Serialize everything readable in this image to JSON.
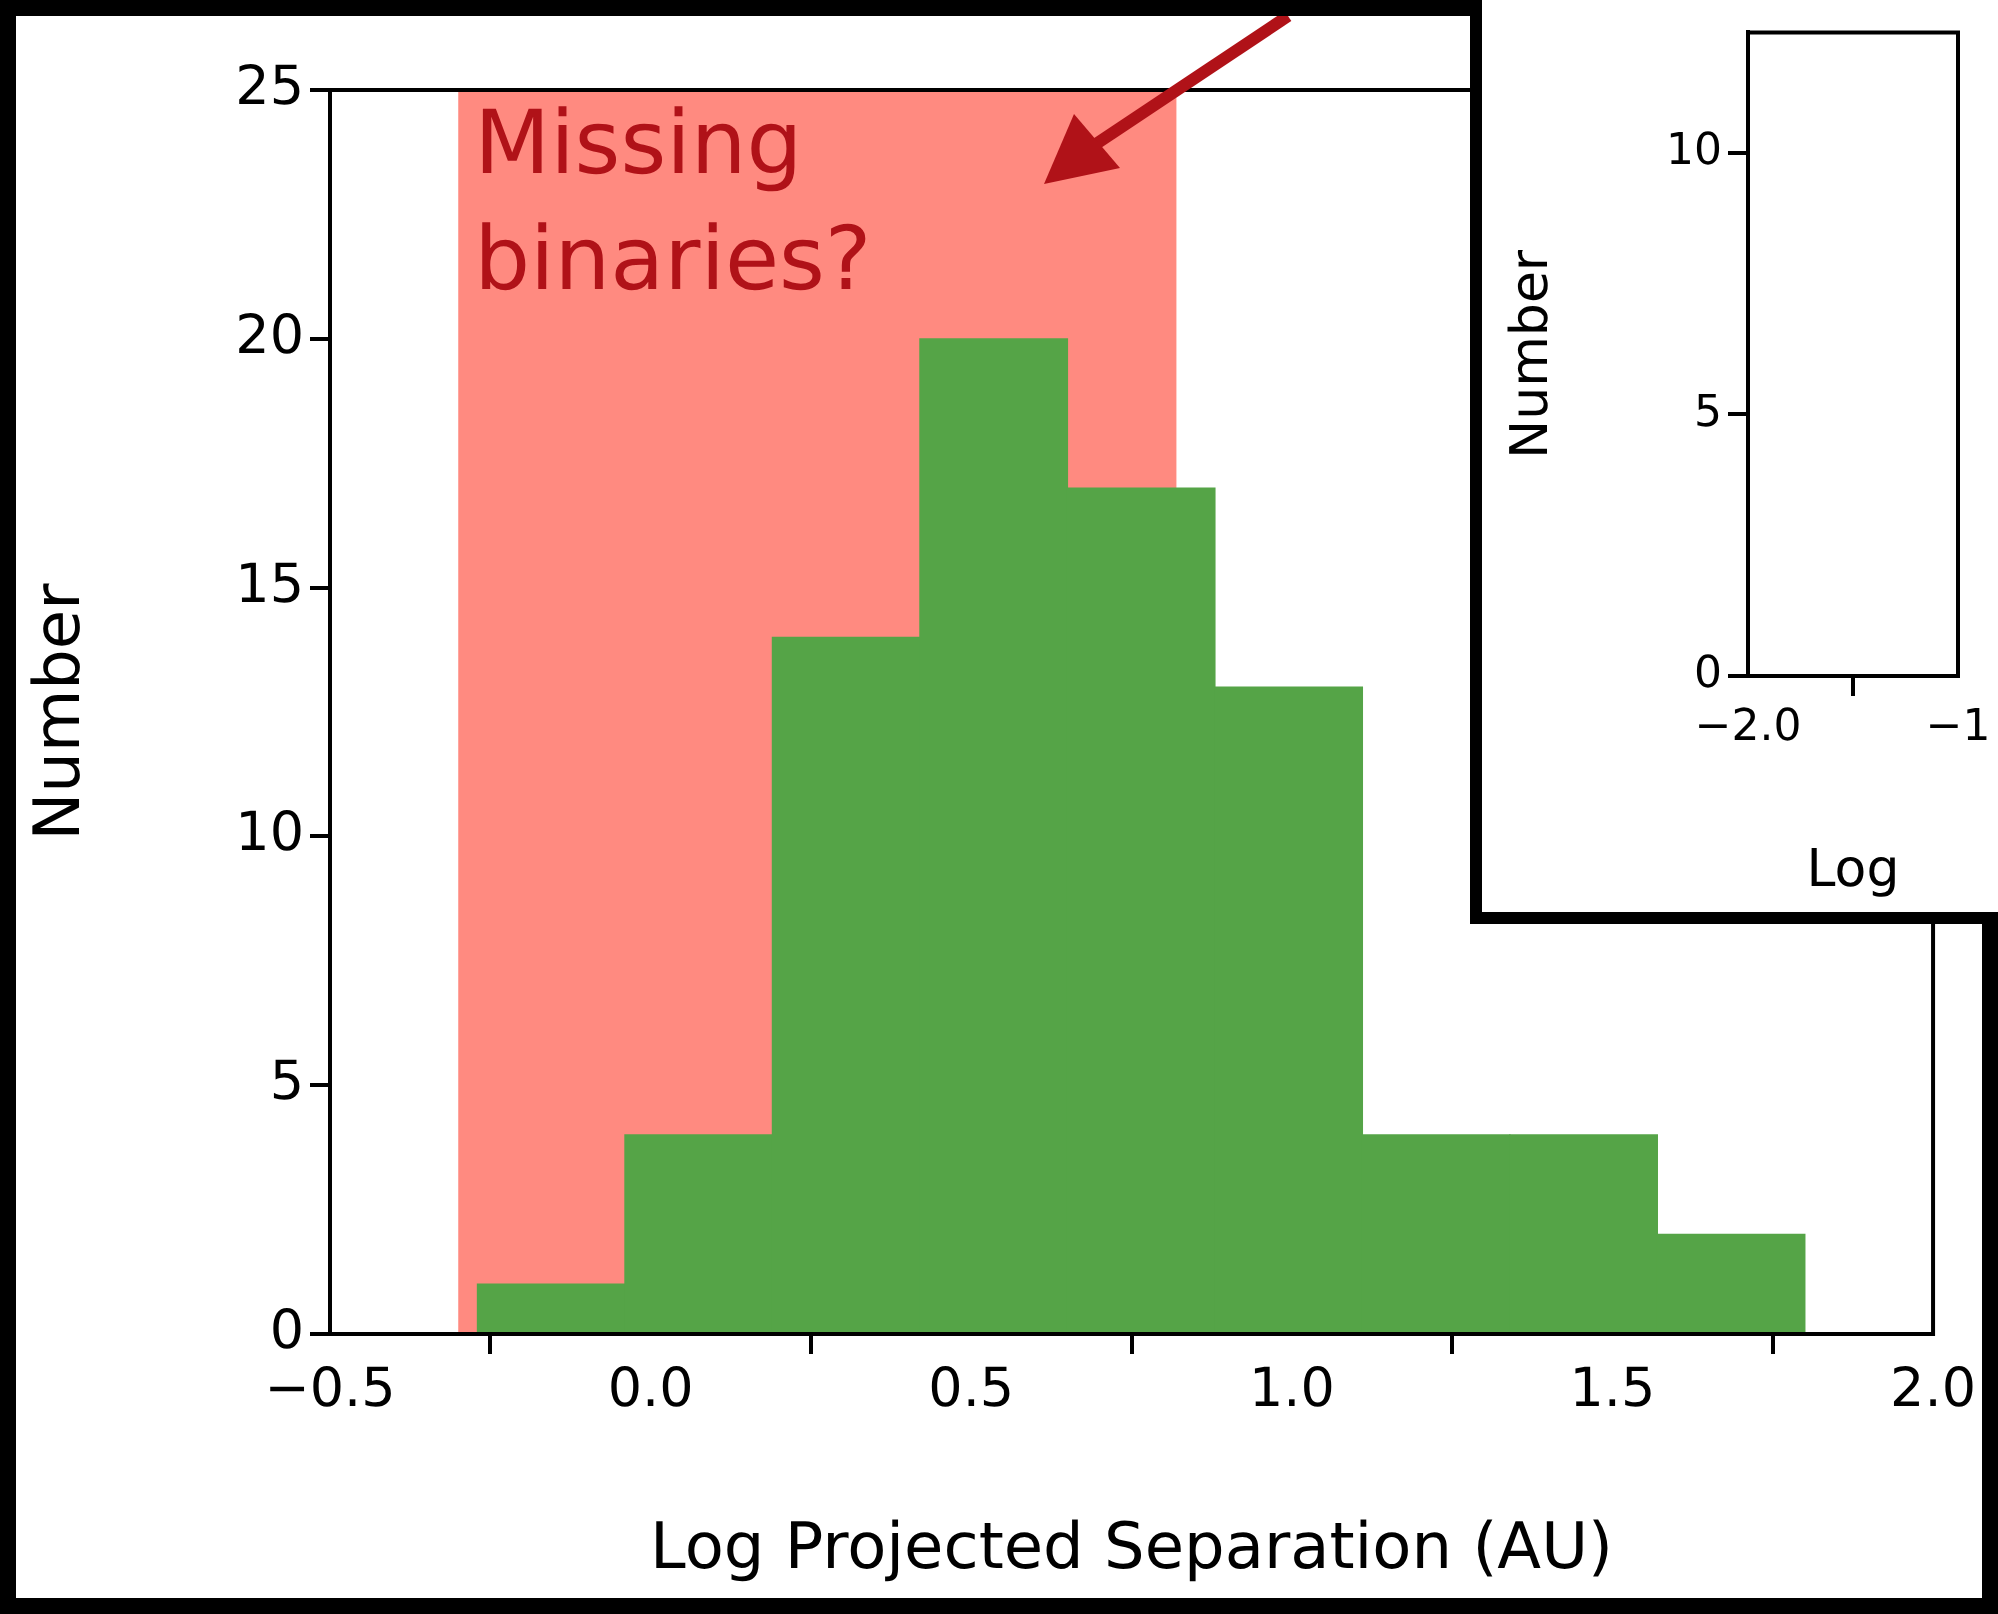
{
  "chart_data": [
    {
      "type": "histogram",
      "xlabel": "Log Projected Separation (AU)",
      "ylabel": "Number",
      "bins": [
        -0.27,
        -0.04,
        0.19,
        0.42,
        0.65,
        0.88,
        1.11,
        1.34,
        1.57,
        1.8
      ],
      "values": [
        1,
        4,
        14,
        20,
        17,
        13,
        4,
        4,
        2
      ],
      "color": "#55a447",
      "xlim": [
        -0.5,
        2.0
      ],
      "xticks": [
        {
          "value": -0.5,
          "label": "−0.5"
        },
        {
          "value": 0,
          "label": "0.0"
        },
        0.5,
        {
          "value": 1,
          "label": "1.0"
        },
        1.5,
        {
          "value": 2,
          "label": "2.0"
        }
      ],
      "ylim": [
        0,
        25
      ],
      "yticks": [
        0,
        5,
        10,
        15,
        20,
        25
      ],
      "bands": [
        {
          "axis": "x",
          "from": -0.3,
          "to": 0.82,
          "label": "Missing binaries?",
          "color": "#ff8a80"
        }
      ],
      "grid": false
    },
    {
      "type": "histogram",
      "xlabel": "Log",
      "ylabel": "Number",
      "xlim": [
        -2.0,
        -1.5
      ],
      "xticks": [
        {
          "value": -2.0,
          "label": "−2.0"
        },
        {
          "value": -1.5,
          "label": "−1"
        }
      ],
      "ylim": [
        0,
        12.3
      ],
      "yticks": [
        0,
        5,
        10
      ],
      "grid": false
    }
  ]
}
